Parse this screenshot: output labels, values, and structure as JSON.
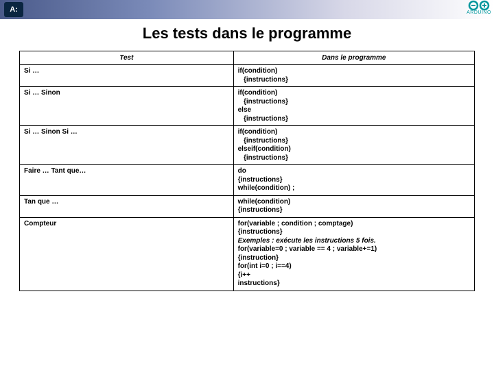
{
  "title": "Les tests dans le programme",
  "logo": "A:",
  "arduino_label": "ARDUINO",
  "arduino_color": "#00979d",
  "headers": {
    "col1": "Test",
    "col2": "Dans le programme"
  },
  "rows": [
    {
      "test": "Si …",
      "prog": "if(condition)\n   {instructions}"
    },
    {
      "test": "Si … Sinon",
      "prog": "if(condition)\n   {instructions}\nelse\n   {instructions}"
    },
    {
      "test": "Si … Sinon Si …",
      "prog": "if(condition)\n   {instructions}\nelseif(condition)\n   {instructions}"
    },
    {
      "test": "Faire … Tant que…",
      "prog": "do\n{instructions}\nwhile(condition) ;"
    },
    {
      "test": "Tan que …",
      "prog": "while(condition)\n{instructions}"
    },
    {
      "test": "Compteur",
      "prog": "for(variable ; condition ; comptage)\n{instructions}\n<i>Exemples : exécute les instructions 5 fois.</i>\nfor(variable=0 ; variable == 4 ; variable+=1)\n{instruction}\nfor(int i=0 ; i==4)\n{i++\ninstructions}"
    }
  ]
}
